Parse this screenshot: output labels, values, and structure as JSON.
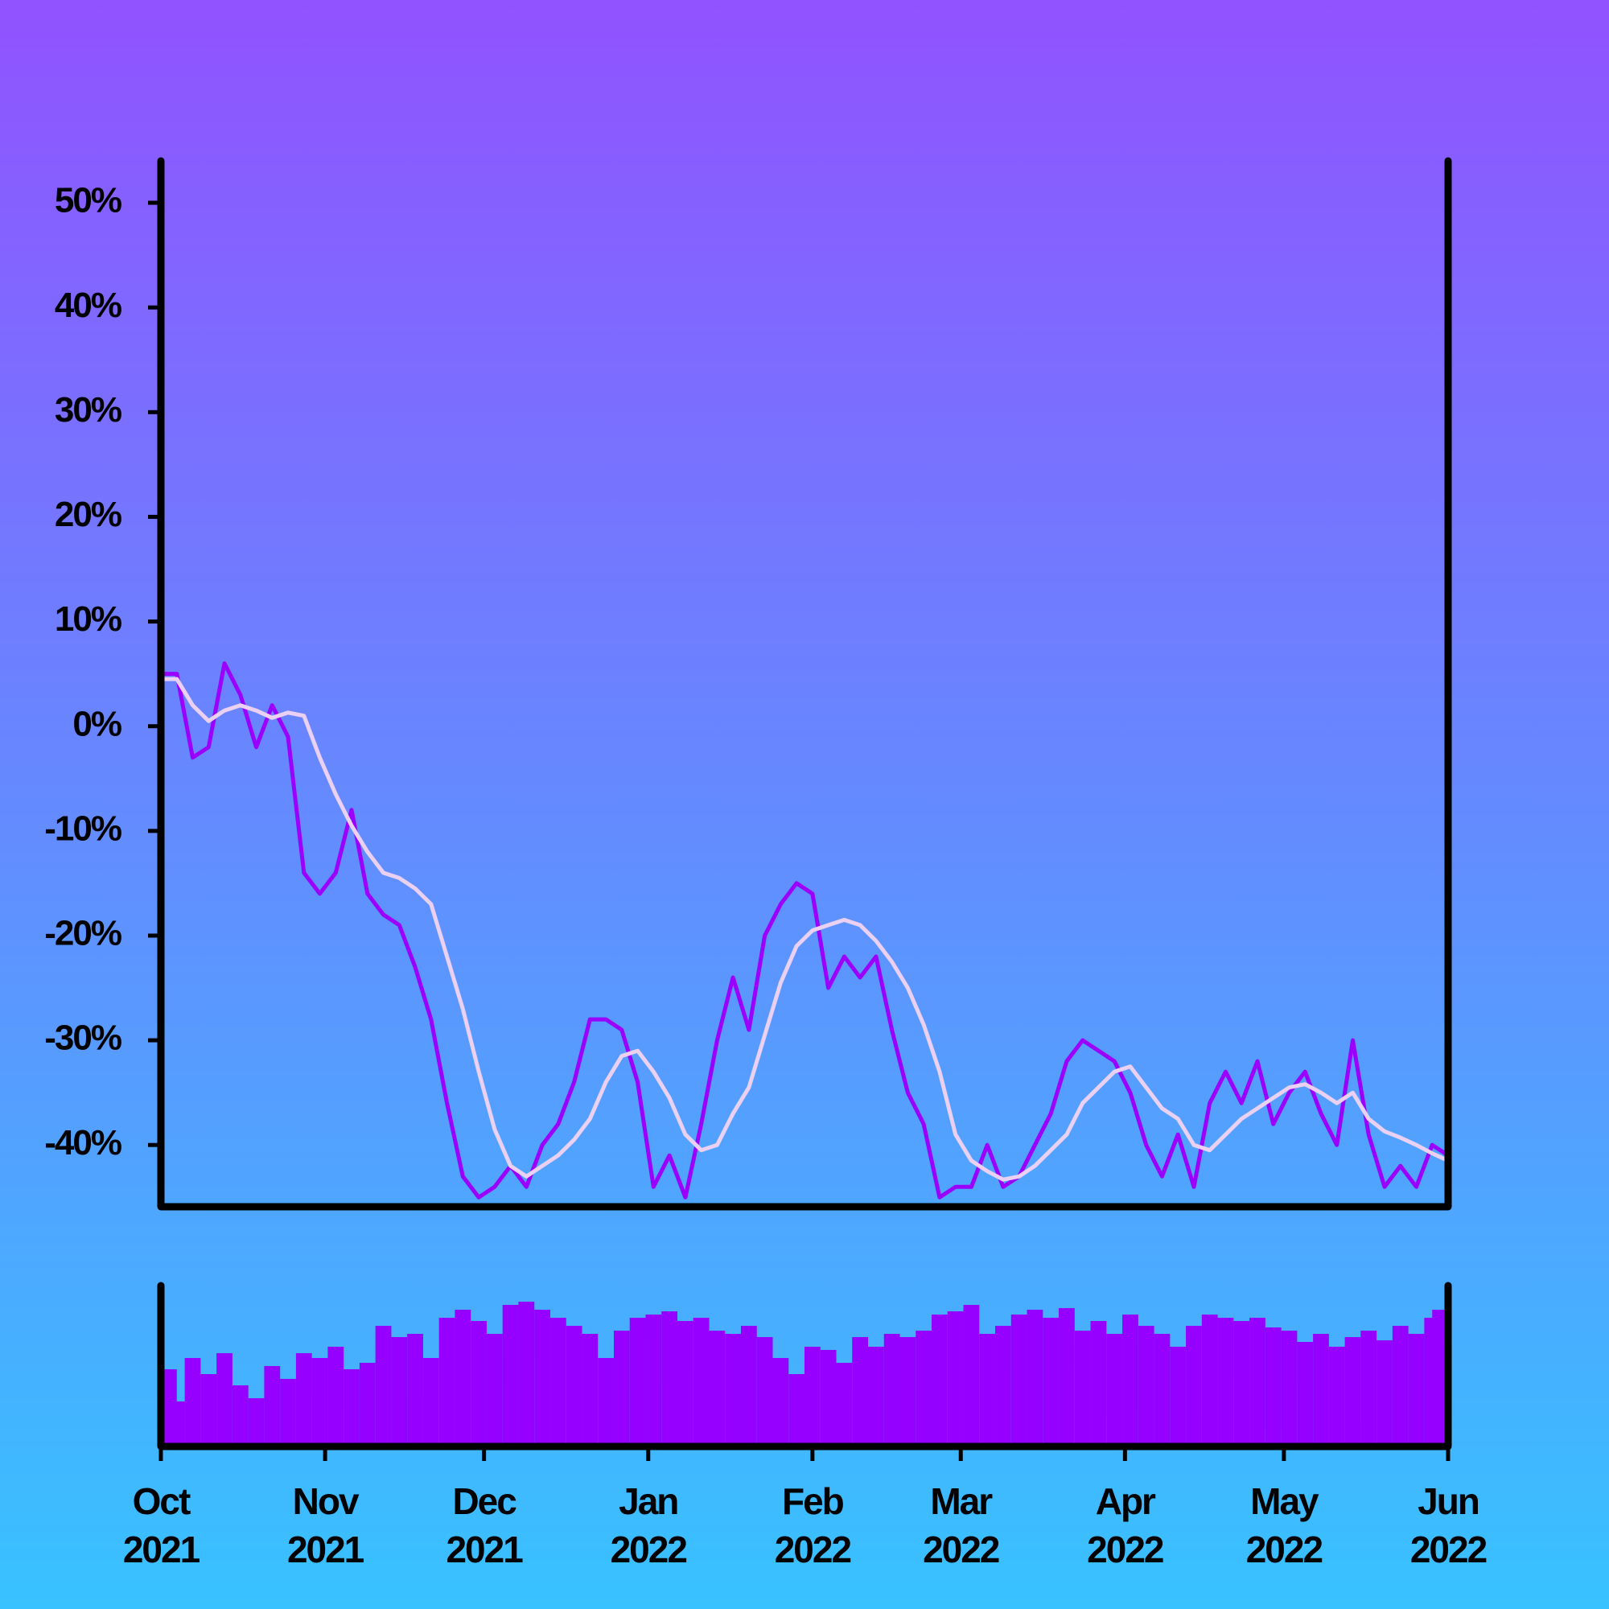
{
  "chart_data": [
    {
      "type": "line",
      "x": [
        0,
        3,
        6,
        9,
        12,
        15,
        18,
        21,
        24,
        27,
        30,
        33,
        36,
        39,
        42,
        45,
        48,
        51,
        54,
        57,
        60,
        63,
        66,
        69,
        72,
        75,
        78,
        81,
        84,
        87,
        90,
        93,
        96,
        99,
        102,
        105,
        108,
        111,
        114,
        117,
        120,
        123,
        126,
        129,
        132,
        135,
        138,
        141,
        144,
        147,
        150,
        153,
        156,
        159,
        162,
        165,
        168,
        171,
        174,
        177,
        180,
        183,
        186,
        189,
        192,
        195,
        198,
        201,
        204,
        207,
        210,
        213,
        216,
        219,
        222,
        225,
        228,
        231,
        234,
        237,
        240,
        243
      ],
      "xlim": [
        0,
        243
      ],
      "ylim": [
        -45.9,
        54
      ],
      "yticks": [
        {
          "value": -40,
          "label": "-40%"
        },
        {
          "value": -30,
          "label": "-30%"
        },
        {
          "value": -20,
          "label": "-20%"
        },
        {
          "value": -10,
          "label": "-10%"
        },
        {
          "value": 0,
          "label": "0%"
        },
        {
          "value": 10,
          "label": "10%"
        },
        {
          "value": 20,
          "label": "20%"
        },
        {
          "value": 30,
          "label": "30%"
        },
        {
          "value": 40,
          "label": "40%"
        },
        {
          "value": 50,
          "label": "50%"
        }
      ],
      "series": [
        {
          "color": "#9b00ff",
          "values": [
            5,
            5,
            -3,
            -2,
            6,
            3,
            -2,
            2,
            -1,
            -14,
            -16,
            -14,
            -8,
            -16,
            -18,
            -19,
            -23,
            -28,
            -36,
            -43,
            -45,
            -44,
            -42,
            -44,
            -40,
            -38,
            -34,
            -28,
            -28,
            -29,
            -34,
            -44,
            -41,
            -45,
            -38,
            -30,
            -24,
            -29,
            -20,
            -17,
            -15,
            -16,
            -25,
            -22,
            -24,
            -22,
            -29,
            -35,
            -38,
            -45,
            -44,
            -44,
            -40,
            -44,
            -43,
            -40,
            -37,
            -32,
            -30,
            -31,
            -32,
            -35,
            -40,
            -43,
            -39,
            -44,
            -36,
            -33,
            -36,
            -32,
            -38,
            -35,
            -33,
            -37,
            -40,
            -30,
            -39,
            -44,
            -42,
            -44,
            -40,
            -41
          ]
        },
        {
          "color": "#ead0f2",
          "values": [
            4.5,
            4.5,
            2,
            0.5,
            1.5,
            2,
            1.5,
            0.8,
            1.3,
            1,
            -3,
            -6.5,
            -9.5,
            -12,
            -14,
            -14.5,
            -15.5,
            -17,
            -22,
            -27,
            -33,
            -38.5,
            -42,
            -43,
            -42,
            -41,
            -39.5,
            -37.5,
            -34,
            -31.5,
            -31,
            -33,
            -35.5,
            -39,
            -40.5,
            -40,
            -37,
            -34.5,
            -29.5,
            -24.5,
            -21,
            -19.5,
            -19,
            -18.5,
            -19,
            -20.5,
            -22.5,
            -25,
            -28.5,
            -33,
            -39,
            -41.5,
            -42.5,
            -43.3,
            -43,
            -42,
            -40.5,
            -39,
            -36,
            -34.5,
            -33,
            -32.5,
            -34.5,
            -36.5,
            -37.5,
            -40,
            -40.5,
            -39,
            -37.5,
            -36.5,
            -35.5,
            -34.5,
            -34.2,
            -35,
            -36,
            -35,
            -37.5,
            -38.7,
            -39.3,
            -40,
            -40.8,
            -41.5
          ]
        }
      ]
    },
    {
      "type": "bar",
      "x": [
        0,
        3,
        6,
        9,
        12,
        15,
        18,
        21,
        24,
        27,
        30,
        33,
        36,
        39,
        42,
        45,
        48,
        51,
        54,
        57,
        60,
        63,
        66,
        69,
        72,
        75,
        78,
        81,
        84,
        87,
        90,
        93,
        96,
        99,
        102,
        105,
        108,
        111,
        114,
        117,
        120,
        123,
        126,
        129,
        132,
        135,
        138,
        141,
        144,
        147,
        150,
        153,
        156,
        159,
        162,
        165,
        168,
        171,
        174,
        177,
        180,
        183,
        186,
        189,
        192,
        195,
        198,
        201,
        204,
        207,
        210,
        213,
        216,
        219,
        222,
        225,
        228,
        231,
        234,
        237,
        240,
        243
      ],
      "xlim": [
        0,
        243
      ],
      "ylim": [
        0,
        100
      ],
      "xticks": [
        {
          "value": 0,
          "label": "Oct 2021"
        },
        {
          "value": 31,
          "label": "Nov 2021"
        },
        {
          "value": 61,
          "label": "Dec 2021"
        },
        {
          "value": 92,
          "label": "Jan 2022"
        },
        {
          "value": 123,
          "label": "Feb 2022"
        },
        {
          "value": 151,
          "label": "Mar 2022"
        },
        {
          "value": 182,
          "label": "Apr 2022"
        },
        {
          "value": 212,
          "label": "May 2022"
        },
        {
          "value": 243,
          "label": "Jun 2022"
        }
      ],
      "color": "#9500ff",
      "values": [
        48,
        28,
        55,
        45,
        58,
        38,
        30,
        50,
        42,
        58,
        55,
        62,
        48,
        52,
        75,
        68,
        70,
        55,
        80,
        85,
        78,
        70,
        88,
        90,
        85,
        80,
        75,
        70,
        55,
        72,
        80,
        82,
        84,
        78,
        80,
        72,
        70,
        75,
        68,
        55,
        45,
        62,
        60,
        52,
        68,
        62,
        70,
        68,
        72,
        82,
        84,
        88,
        70,
        75,
        82,
        85,
        80,
        86,
        72,
        78,
        70,
        82,
        75,
        70,
        62,
        75,
        82,
        80,
        78,
        80,
        74,
        72,
        65,
        70,
        62,
        68,
        72,
        66,
        75,
        70,
        80,
        85
      ]
    }
  ]
}
